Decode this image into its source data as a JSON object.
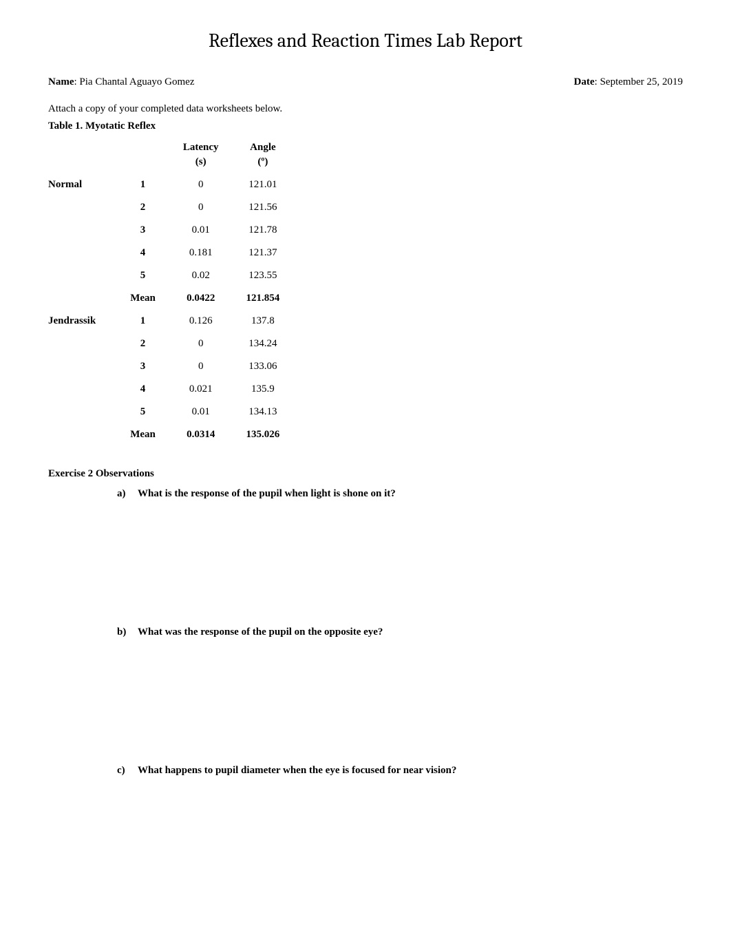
{
  "title": "Reflexes and Reaction Times  Lab Report",
  "header": {
    "name_label": "Name",
    "name_value": "Pia Chantal Aguayo Gomez",
    "date_label": "Date",
    "date_value": "September 25, 2019"
  },
  "intro": "Attach a copy of your completed data worksheets below.",
  "table": {
    "title": "Table 1. Myotatic Reflex",
    "col_latency": "Latency",
    "col_latency_unit": "(s)",
    "col_angle": "Angle",
    "col_angle_unit": "(º)",
    "mean_label": "Mean",
    "groups": [
      {
        "name": "Normal",
        "rows": [
          {
            "trial": "1",
            "latency": "0",
            "angle": "121.01"
          },
          {
            "trial": "2",
            "latency": "0",
            "angle": "121.56"
          },
          {
            "trial": "3",
            "latency": "0.01",
            "angle": "121.78"
          },
          {
            "trial": "4",
            "latency": "0.181",
            "angle": "121.37"
          },
          {
            "trial": "5",
            "latency": "0.02",
            "angle": "123.55"
          }
        ],
        "mean_latency": "0.0422",
        "mean_angle": "121.854"
      },
      {
        "name": "Jendrassik",
        "rows": [
          {
            "trial": "1",
            "latency": "0.126",
            "angle": "137.8"
          },
          {
            "trial": "2",
            "latency": "0",
            "angle": "134.24"
          },
          {
            "trial": "3",
            "latency": "0",
            "angle": "133.06"
          },
          {
            "trial": "4",
            "latency": "0.021",
            "angle": "135.9"
          },
          {
            "trial": "5",
            "latency": "0.01",
            "angle": "134.13"
          }
        ],
        "mean_latency": "0.0314",
        "mean_angle": "135.026"
      }
    ]
  },
  "exercise2": {
    "header": "Exercise 2 Observations",
    "questions": [
      {
        "letter": "a)",
        "text": "What is the response of the pupil when light is shone on it?"
      },
      {
        "letter": "b)",
        "text": "What was the response of the pupil on the opposite eye?"
      },
      {
        "letter": "c)",
        "text": "What happens to pupil diameter when the eye is focused for near vision?"
      }
    ]
  }
}
